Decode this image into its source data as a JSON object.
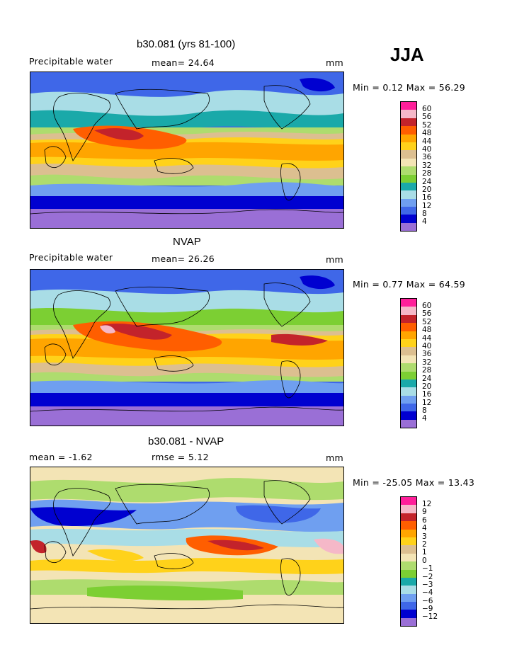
{
  "season": "JJA",
  "colors": {
    "c0": "#9a6fd6",
    "c1": "#0000d0",
    "c2": "#3f67e8",
    "c3": "#6f9ff0",
    "c4": "#a9dde6",
    "c5": "#1aa9a9",
    "c6": "#7ccf33",
    "c7": "#aedc6e",
    "c8": "#f3e4b5",
    "c9": "#dcbf90",
    "c10": "#ffd21a",
    "c11": "#ffa500",
    "c12": "#ff5e00",
    "c13": "#c3232b",
    "c14": "#f5b8c8",
    "c15": "#ff1f9a"
  },
  "panels": [
    {
      "title": "b30.081 (yrs 81-100)",
      "left_label": "Precipitable water",
      "stat_label": "mean=  24.64",
      "units": "mm",
      "minmax": "Min =   0.12 Max =  56.29",
      "scale": [
        "60",
        "56",
        "52",
        "48",
        "44",
        "40",
        "36",
        "32",
        "28",
        "24",
        "20",
        "16",
        "12",
        "8",
        "4"
      ]
    },
    {
      "title": "NVAP",
      "left_label": "Precipitable water",
      "stat_label": "mean=  26.26",
      "units": "mm",
      "minmax": "Min =   0.77 Max =  64.59",
      "scale": [
        "60",
        "56",
        "52",
        "48",
        "44",
        "40",
        "36",
        "32",
        "28",
        "24",
        "20",
        "16",
        "12",
        "8",
        "4"
      ]
    },
    {
      "title": "b30.081 - NVAP",
      "left_label": "mean =  -1.62",
      "stat_label": "rmse =   5.12",
      "units": "mm",
      "minmax": "Min = -25.05 Max =  13.43",
      "scale": [
        "12",
        "9",
        "6",
        "4",
        "3",
        "2",
        "1",
        "0",
        "−1",
        "−2",
        "−3",
        "−4",
        "−6",
        "−9",
        "−12"
      ]
    }
  ]
}
